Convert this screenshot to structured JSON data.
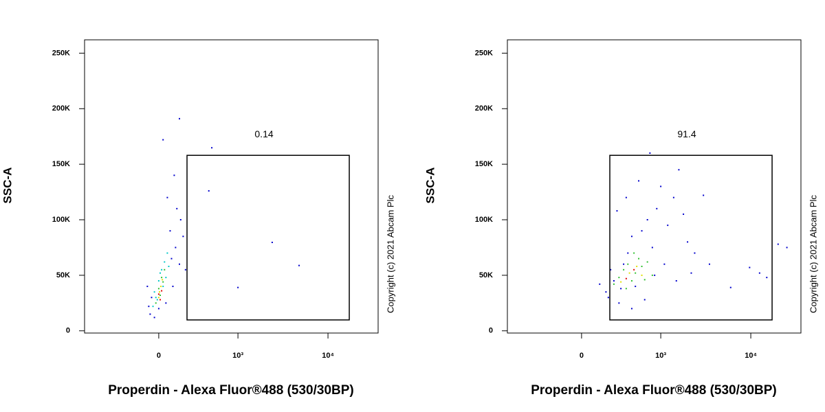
{
  "chart_data": [
    {
      "type": "scatter",
      "ylabel": "SSC-A",
      "xlabel": "Properdin - Alexa Fluor®488 (530/30BP)",
      "annotation": "Copyright (c) 2021 Abcam Plc",
      "xscale": "biexponential",
      "xlim": [
        -876,
        35700
      ],
      "ylim": [
        -2000,
        262000
      ],
      "xticks": [
        0,
        {
          "value": 1000,
          "label": "10³"
        },
        {
          "value": 10000,
          "label": "10⁴"
        }
      ],
      "yticks": [
        0,
        {
          "value": 50000,
          "label": "50K"
        },
        {
          "value": 100000,
          "label": "100K"
        },
        {
          "value": 150000,
          "label": "150K"
        },
        {
          "value": 200000,
          "label": "200K"
        },
        {
          "value": 250000,
          "label": "250K"
        }
      ],
      "gate": {
        "xlim": [
          213,
          17170
        ],
        "ylim": [
          9800,
          158000
        ],
        "value": 0.14
      },
      "series": [
        {
          "color": "#0000cc",
          "x": [
            -60,
            -30,
            0,
            50,
            100,
            150,
            120,
            80,
            160,
            60,
            110,
            30,
            150,
            -50,
            200,
            -80,
            90,
            180,
            489,
            448,
            2420,
            4800,
            1000,
            -70,
            130
          ],
          "values": [
            15000,
            12000,
            20000,
            25000,
            40000,
            60000,
            75000,
            90000,
            100000,
            120000,
            140000,
            172000,
            191000,
            30000,
            55000,
            40000,
            65000,
            85000,
            164800,
            126000,
            79600,
            58800,
            39000,
            22000,
            110000
          ]
        },
        {
          "color": "#00c8c8",
          "x": [
            -40,
            -20,
            0,
            20,
            40,
            60,
            -30,
            10,
            50,
            30,
            -10,
            70
          ],
          "values": [
            22000,
            30000,
            45000,
            55000,
            62000,
            70000,
            35000,
            52000,
            48000,
            40000,
            28000,
            58000
          ]
        },
        {
          "color": "#30c030",
          "x": [
            -20,
            0,
            20,
            40,
            10,
            30
          ],
          "values": [
            25000,
            38000,
            48000,
            55000,
            32000,
            44000
          ]
        },
        {
          "color": "#e0e000",
          "x": [
            0,
            15,
            25,
            5
          ],
          "values": [
            30000,
            40000,
            46000,
            35000
          ]
        },
        {
          "color": "#e00000",
          "x": [
            10,
            20,
            0
          ],
          "values": [
            28000,
            36000,
            33000
          ]
        }
      ]
    },
    {
      "type": "scatter",
      "ylabel": "SSC-A",
      "xlabel": "Properdin - Alexa Fluor®488 (530/30BP)",
      "annotation": "Copyright (c) 2021 Abcam Plc",
      "xscale": "biexponential",
      "xlim": [
        -876,
        35700
      ],
      "ylim": [
        -2000,
        262000
      ],
      "xticks": [
        0,
        {
          "value": 1000,
          "label": "10³"
        },
        {
          "value": 10000,
          "label": "10⁴"
        }
      ],
      "yticks": [
        0,
        {
          "value": 50000,
          "label": "50K"
        },
        {
          "value": 100000,
          "label": "100K"
        },
        {
          "value": 150000,
          "label": "150K"
        },
        {
          "value": 200000,
          "label": "200K"
        },
        {
          "value": 250000,
          "label": "250K"
        }
      ],
      "gate": {
        "xlim": [
          213,
          17170
        ],
        "ylim": [
          9800,
          158000
        ],
        "value": 91.4
      },
      "series": [
        {
          "color": "#0000cc",
          "x": [
            200,
            250,
            300,
            350,
            400,
            450,
            500,
            600,
            700,
            800,
            900,
            1000,
            1200,
            1400,
            1600,
            1800,
            2000,
            2400,
            3000,
            3500,
            130,
            180,
            220,
            320,
            450,
            650,
            850,
            1100,
            1500,
            2200,
            9700,
            12500,
            15000,
            20000,
            6000,
            25000,
            280,
            380,
            550,
            750
          ],
          "values": [
            30000,
            45000,
            25000,
            60000,
            70000,
            85000,
            40000,
            90000,
            100000,
            75000,
            110000,
            130000,
            95000,
            120000,
            145000,
            105000,
            80000,
            70000,
            122000,
            60000,
            42000,
            35000,
            55000,
            38000,
            20000,
            28000,
            50000,
            60000,
            45000,
            52000,
            57000,
            52000,
            48000,
            78000,
            39000,
            75000,
            108000,
            120000,
            135000,
            160000
          ]
        },
        {
          "color": "#30c030",
          "x": [
            250,
            300,
            350,
            400,
            450,
            500,
            550,
            600,
            700,
            800,
            380,
            480,
            650
          ],
          "values": [
            42000,
            48000,
            55000,
            60000,
            45000,
            52000,
            65000,
            58000,
            62000,
            50000,
            38000,
            70000,
            46000
          ]
        },
        {
          "color": "#e0e000",
          "x": [
            320,
            420,
            520,
            600
          ],
          "values": [
            44000,
            52000,
            58000,
            50000
          ]
        },
        {
          "color": "#e00000",
          "x": [
            380,
            480
          ],
          "values": [
            47000,
            55000
          ]
        }
      ]
    }
  ]
}
